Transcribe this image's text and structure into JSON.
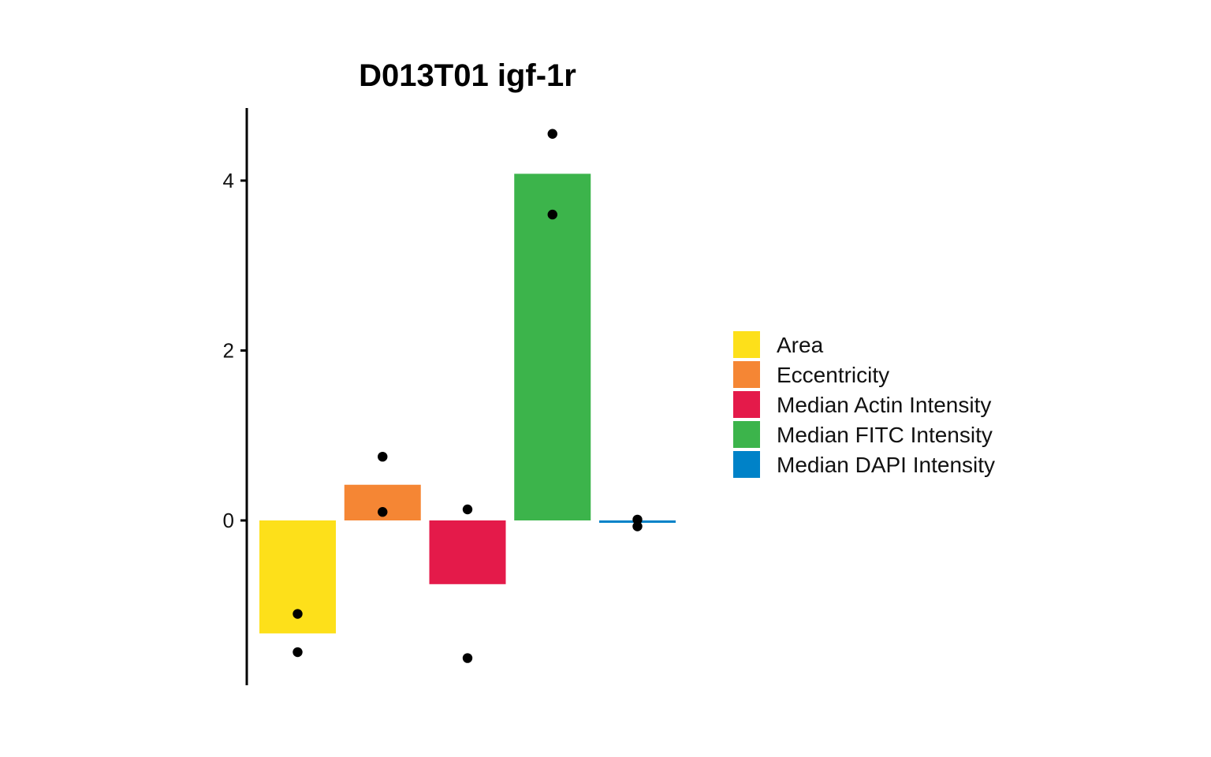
{
  "chart_data": {
    "type": "bar",
    "title": "D013T01 igf-1r",
    "xlabel": "",
    "ylabel": "",
    "ylim": [
      -1.9,
      4.8
    ],
    "yticks": [
      0,
      2,
      4
    ],
    "grid": false,
    "legend_position": "right",
    "categories": [
      "Area",
      "Eccentricity",
      "Median Actin Intensity",
      "Median FITC Intensity",
      "Median DAPI Intensity"
    ],
    "values": [
      -1.33,
      0.42,
      -0.75,
      4.08,
      -0.02
    ],
    "points": [
      [
        -1.1,
        -1.55
      ],
      [
        0.75,
        0.1
      ],
      [
        0.13,
        -1.62
      ],
      [
        4.55,
        3.6
      ],
      [
        0.01,
        -0.07
      ]
    ],
    "colors": [
      "#FDE01A",
      "#F58634",
      "#E41A4A",
      "#3CB44B",
      "#0082C8"
    ]
  }
}
